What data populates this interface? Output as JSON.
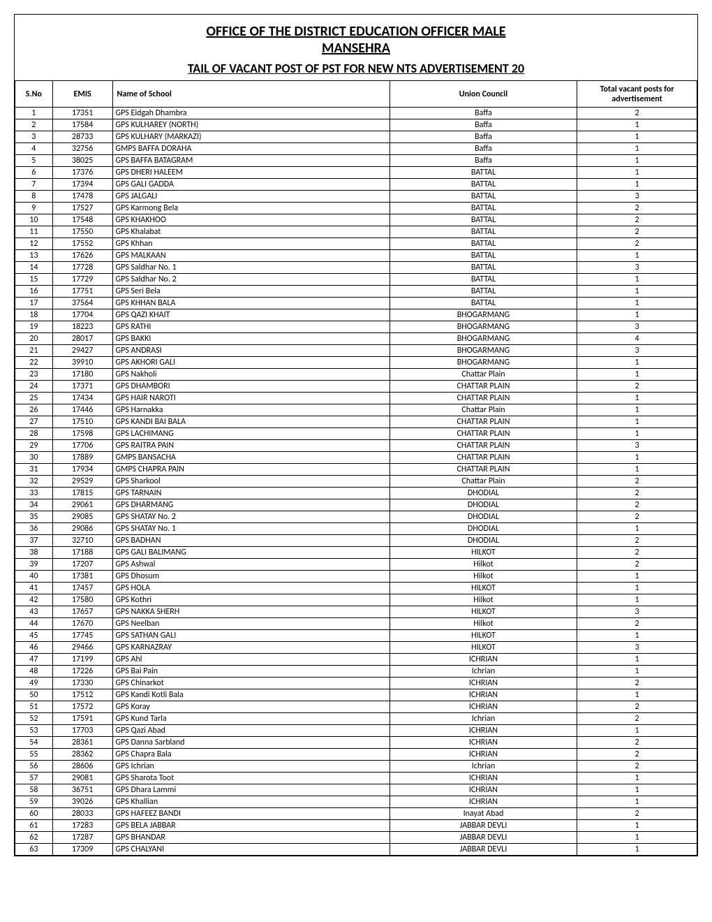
{
  "heading": {
    "line1": "OFFICE OF THE DISTRICT EDUCATION OFFICER MALE",
    "line2": "MANSEHRA",
    "detail": "TAIL OF VACANT POST OF PST FOR NEW NTS ADVERTISEMENT 20"
  },
  "table": {
    "headers": {
      "sno": "S.No",
      "emis": "EMIS",
      "name": "Name of School",
      "uc": "Union Council",
      "vacant": "Total vacant posts for advertisement"
    },
    "rows": [
      {
        "sno": "1",
        "emis": "17351",
        "name": "GPS Eidgah Dhambra",
        "uc": "Baffa",
        "vacant": "2"
      },
      {
        "sno": "2",
        "emis": "17584",
        "name": "GPS KULHAREY (NORTH)",
        "uc": "Baffa",
        "vacant": "1"
      },
      {
        "sno": "3",
        "emis": "28733",
        "name": "GPS KULHARY (MARKAZI)",
        "uc": "Baffa",
        "vacant": "1"
      },
      {
        "sno": "4",
        "emis": "32756",
        "name": "GMPS BAFFA DORAHA",
        "uc": "Baffa",
        "vacant": "1"
      },
      {
        "sno": "5",
        "emis": "38025",
        "name": "GPS BAFFA BATAGRAM",
        "uc": "Baffa",
        "vacant": "1"
      },
      {
        "sno": "6",
        "emis": "17376",
        "name": "GPS DHERI HALEEM",
        "uc": "BATTAL",
        "vacant": "1"
      },
      {
        "sno": "7",
        "emis": "17394",
        "name": "GPS GALI GADDA",
        "uc": "BATTAL",
        "vacant": "1"
      },
      {
        "sno": "8",
        "emis": "17478",
        "name": "GPS JALGALI",
        "uc": "BATTAL",
        "vacant": "3"
      },
      {
        "sno": "9",
        "emis": "17527",
        "name": "GPS Karmong Bela",
        "uc": "BATTAL",
        "vacant": "2"
      },
      {
        "sno": "10",
        "emis": "17548",
        "name": "GPS KHAKHOO",
        "uc": "BATTAL",
        "vacant": "2"
      },
      {
        "sno": "11",
        "emis": "17550",
        "name": "GPS Khalabat",
        "uc": "BATTAL",
        "vacant": "2"
      },
      {
        "sno": "12",
        "emis": "17552",
        "name": "GPS Khhan",
        "uc": "BATTAL",
        "vacant": "2"
      },
      {
        "sno": "13",
        "emis": "17626",
        "name": "GPS MALKAAN",
        "uc": "BATTAL",
        "vacant": "1"
      },
      {
        "sno": "14",
        "emis": "17728",
        "name": "GPS Saldhar No. 1",
        "uc": "BATTAL",
        "vacant": "3"
      },
      {
        "sno": "15",
        "emis": "17729",
        "name": "GPS Saldhar No. 2",
        "uc": "BATTAL",
        "vacant": "1"
      },
      {
        "sno": "16",
        "emis": "17751",
        "name": "GPS Seri Bela",
        "uc": "BATTAL",
        "vacant": "1"
      },
      {
        "sno": "17",
        "emis": "37564",
        "name": "GPS KHHAN BALA",
        "uc": "BATTAL",
        "vacant": "1"
      },
      {
        "sno": "18",
        "emis": "17704",
        "name": "GPS QAZI KHAIT",
        "uc": "BHOGARMANG",
        "vacant": "1"
      },
      {
        "sno": "19",
        "emis": "18223",
        "name": "GPS RATHI",
        "uc": "BHOGARMANG",
        "vacant": "3"
      },
      {
        "sno": "20",
        "emis": "28017",
        "name": "GPS BAKKI",
        "uc": "BHOGARMANG",
        "vacant": "4"
      },
      {
        "sno": "21",
        "emis": "29427",
        "name": "GPS ANDRASI",
        "uc": "BHOGARMANG",
        "vacant": "3"
      },
      {
        "sno": "22",
        "emis": "39910",
        "name": "GPS AKHORI GALI",
        "uc": "BHOGARMANG",
        "vacant": "1"
      },
      {
        "sno": "23",
        "emis": "17180",
        "name": "GPS Nakholi",
        "uc": "Chattar Plain",
        "vacant": "1"
      },
      {
        "sno": "24",
        "emis": "17371",
        "name": "GPS DHAMBORI",
        "uc": "CHATTAR PLAIN",
        "vacant": "2"
      },
      {
        "sno": "25",
        "emis": "17434",
        "name": "GPS HAIR NAROTI",
        "uc": "CHATTAR PLAIN",
        "vacant": "1"
      },
      {
        "sno": "26",
        "emis": "17446",
        "name": "GPS Harnakka",
        "uc": "Chattar Plain",
        "vacant": "1"
      },
      {
        "sno": "27",
        "emis": "17510",
        "name": "GPS KANDI BAI BALA",
        "uc": "CHATTAR PLAIN",
        "vacant": "1"
      },
      {
        "sno": "28",
        "emis": "17598",
        "name": "GPS LACHIMANG",
        "uc": "CHATTAR PLAIN",
        "vacant": "1"
      },
      {
        "sno": "29",
        "emis": "17706",
        "name": "GPS RAITRA PAIN",
        "uc": "CHATTAR PLAIN",
        "vacant": "3"
      },
      {
        "sno": "30",
        "emis": "17889",
        "name": "GMPS BANSACHA",
        "uc": "CHATTAR PLAIN",
        "vacant": "1"
      },
      {
        "sno": "31",
        "emis": "17934",
        "name": "GMPS CHAPRA PAIN",
        "uc": "CHATTAR PLAIN",
        "vacant": "1"
      },
      {
        "sno": "32",
        "emis": "29529",
        "name": "GPS Sharkool",
        "uc": "Chattar Plain",
        "vacant": "2"
      },
      {
        "sno": "33",
        "emis": "17815",
        "name": "GPS TARNAIN",
        "uc": "DHODIAL",
        "vacant": "2"
      },
      {
        "sno": "34",
        "emis": "29061",
        "name": "GPS DHARMANG",
        "uc": "DHODIAL",
        "vacant": "2"
      },
      {
        "sno": "35",
        "emis": "29085",
        "name": "GPS SHATAY No. 2",
        "uc": "DHODIAL",
        "vacant": "2"
      },
      {
        "sno": "36",
        "emis": "29086",
        "name": "GPS SHATAY No. 1",
        "uc": "DHODIAL",
        "vacant": "1"
      },
      {
        "sno": "37",
        "emis": "32710",
        "name": "GPS BADHAN",
        "uc": "DHODIAL",
        "vacant": "2"
      },
      {
        "sno": "38",
        "emis": "17188",
        "name": "GPS GALI BALIMANG",
        "uc": "HILKOT",
        "vacant": "2"
      },
      {
        "sno": "39",
        "emis": "17207",
        "name": "GPS Ashwal",
        "uc": "Hilkot",
        "vacant": "2"
      },
      {
        "sno": "40",
        "emis": "17381",
        "name": "GPS Dhosum",
        "uc": "Hilkot",
        "vacant": "1"
      },
      {
        "sno": "41",
        "emis": "17457",
        "name": "GPS HOLA",
        "uc": "HILKOT",
        "vacant": "1"
      },
      {
        "sno": "42",
        "emis": "17580",
        "name": "GPS Kothri",
        "uc": "Hilkot",
        "vacant": "1"
      },
      {
        "sno": "43",
        "emis": "17657",
        "name": "GPS NAKKA SHERH",
        "uc": "HILKOT",
        "vacant": "3"
      },
      {
        "sno": "44",
        "emis": "17670",
        "name": "GPS Neelban",
        "uc": "Hilkot",
        "vacant": "2"
      },
      {
        "sno": "45",
        "emis": "17745",
        "name": "GPS SATHAN GALI",
        "uc": "HILKOT",
        "vacant": "1"
      },
      {
        "sno": "46",
        "emis": "29466",
        "name": "GPS KARNAZRAY",
        "uc": "HILKOT",
        "vacant": "3"
      },
      {
        "sno": "47",
        "emis": "17199",
        "name": "GPS Ahl",
        "uc": "ICHRIAN",
        "vacant": "1"
      },
      {
        "sno": "48",
        "emis": "17226",
        "name": "GPS Bai Pain",
        "uc": "Ichrian",
        "vacant": "1"
      },
      {
        "sno": "49",
        "emis": "17330",
        "name": "GPS Chinarkot",
        "uc": "ICHRIAN",
        "vacant": "2"
      },
      {
        "sno": "50",
        "emis": "17512",
        "name": "GPS Kandi Kotli Bala",
        "uc": "ICHRIAN",
        "vacant": "1"
      },
      {
        "sno": "51",
        "emis": "17572",
        "name": "GPS Koray",
        "uc": "ICHRIAN",
        "vacant": "2"
      },
      {
        "sno": "52",
        "emis": "17591",
        "name": "GPS Kund Tarla",
        "uc": "Ichrian",
        "vacant": "2"
      },
      {
        "sno": "53",
        "emis": "17703",
        "name": "GPS Qazi Abad",
        "uc": "ICHRIAN",
        "vacant": "1"
      },
      {
        "sno": "54",
        "emis": "28361",
        "name": "GPS Danna Sarbland",
        "uc": "ICHRIAN",
        "vacant": "2"
      },
      {
        "sno": "55",
        "emis": "28362",
        "name": "GPS Chapra Bala",
        "uc": "ICHRIAN",
        "vacant": "2"
      },
      {
        "sno": "56",
        "emis": "28606",
        "name": "GPS Ichrian",
        "uc": "Ichrian",
        "vacant": "2"
      },
      {
        "sno": "57",
        "emis": "29081",
        "name": "GPS Sharota Toot",
        "uc": "ICHRIAN",
        "vacant": "1"
      },
      {
        "sno": "58",
        "emis": "36751",
        "name": "GPS Dhara Lammi",
        "uc": "ICHRIAN",
        "vacant": "1"
      },
      {
        "sno": "59",
        "emis": "39026",
        "name": "GPS Khallian",
        "uc": "ICHRIAN",
        "vacant": "1"
      },
      {
        "sno": "60",
        "emis": "28033",
        "name": "GPS HAFEEZ BANDI",
        "uc": "Inayat Abad",
        "vacant": "2"
      },
      {
        "sno": "61",
        "emis": "17283",
        "name": "GPS BELA JABBAR",
        "uc": "JABBAR DEVLI",
        "vacant": "1"
      },
      {
        "sno": "62",
        "emis": "17287",
        "name": "GPS BHANDAR",
        "uc": "JABBAR DEVLI",
        "vacant": "1"
      },
      {
        "sno": "63",
        "emis": "17309",
        "name": "GPS CHALYANI",
        "uc": "JABBAR DEVLI",
        "vacant": "1"
      }
    ]
  }
}
